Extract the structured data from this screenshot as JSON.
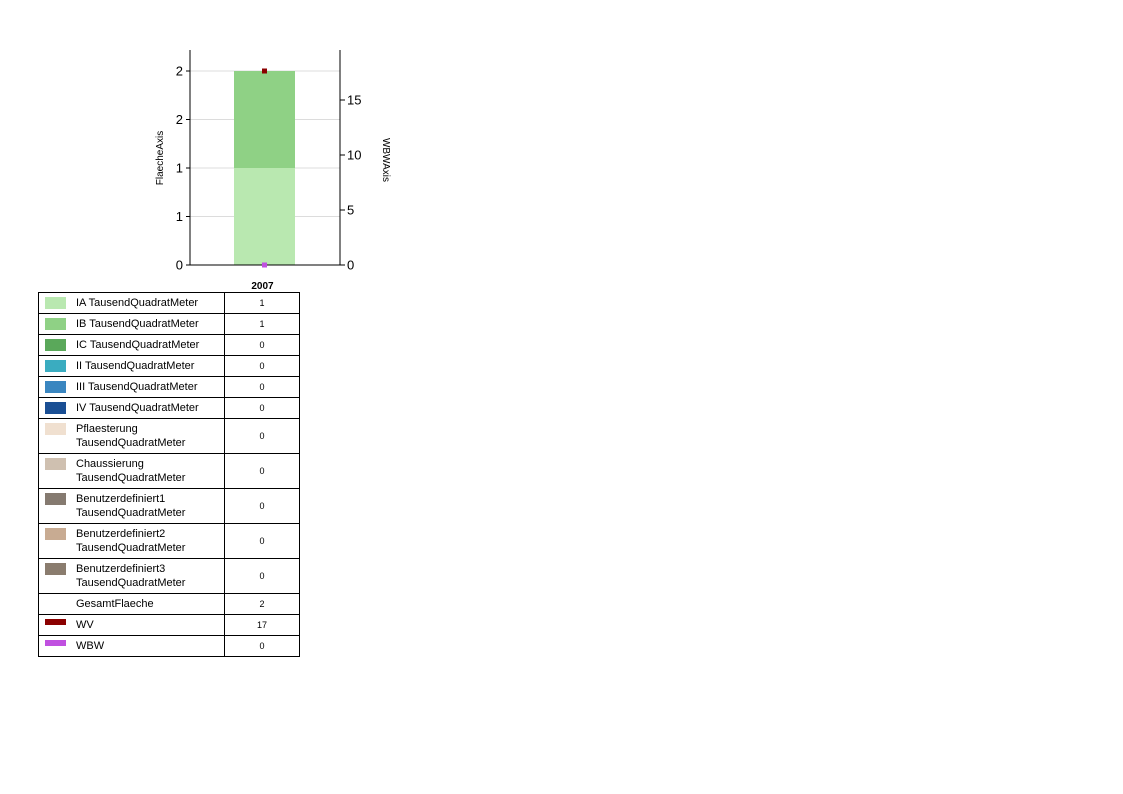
{
  "chart_data": {
    "type": "bar",
    "categories": [
      "2007"
    ],
    "left_axis": {
      "label": "FlaecheAxis",
      "ticks": [
        "0",
        "1",
        "1",
        "2",
        "2"
      ]
    },
    "right_axis": {
      "label": "WBWAxis",
      "ticks": [
        "0",
        "5",
        "10",
        "15"
      ],
      "ylim": [
        0,
        19
      ]
    },
    "series": [
      {
        "name": "IA TausendQuadratMeter",
        "color": "#b9e8b0",
        "kind": "bar",
        "values": [
          1
        ]
      },
      {
        "name": "IB TausendQuadratMeter",
        "color": "#8fd185",
        "kind": "bar",
        "values": [
          1
        ]
      },
      {
        "name": "IC TausendQuadratMeter",
        "color": "#5aa85a",
        "kind": "bar",
        "values": [
          0
        ]
      },
      {
        "name": "II TausendQuadratMeter",
        "color": "#3aacc0",
        "kind": "bar",
        "values": [
          0
        ]
      },
      {
        "name": "III TausendQuadratMeter",
        "color": "#3a86c0",
        "kind": "bar",
        "values": [
          0
        ]
      },
      {
        "name": "IV TausendQuadratMeter",
        "color": "#1a4f94",
        "kind": "bar",
        "values": [
          0
        ]
      },
      {
        "name": "Pflaesterung TausendQuadratMeter",
        "color": "#f0e0d0",
        "kind": "bar",
        "values": [
          0
        ]
      },
      {
        "name": "Chaussierung TausendQuadratMeter",
        "color": "#cfc0b0",
        "kind": "bar",
        "values": [
          0
        ]
      },
      {
        "name": "Benutzerdefiniert1 TausendQuadratMeter",
        "color": "#857a70",
        "kind": "bar",
        "values": [
          0
        ]
      },
      {
        "name": "Benutzerdefiniert2 TausendQuadratMeter",
        "color": "#c8ab92",
        "kind": "bar",
        "values": [
          0
        ]
      },
      {
        "name": "Benutzerdefiniert3 TausendQuadratMeter",
        "color": "#8a7c6e",
        "kind": "bar",
        "values": [
          0
        ]
      },
      {
        "name": "GesamtFlaeche",
        "color": "",
        "kind": "none",
        "values": [
          2
        ]
      },
      {
        "name": "WV",
        "color": "#8b0000",
        "kind": "point",
        "values": [
          17
        ]
      },
      {
        "name": "WBW",
        "color": "#c050e0",
        "kind": "point",
        "values": [
          0
        ]
      }
    ],
    "legend": [
      {
        "label": "IA TausendQuadratMeter",
        "value": "1",
        "color": "#b9e8b0",
        "swatch": "box"
      },
      {
        "label": "IB TausendQuadratMeter",
        "value": "1",
        "color": "#8fd185",
        "swatch": "box"
      },
      {
        "label": "IC TausendQuadratMeter",
        "value": "0",
        "color": "#5aa85a",
        "swatch": "box"
      },
      {
        "label": "II TausendQuadratMeter",
        "value": "0",
        "color": "#3aacc0",
        "swatch": "box"
      },
      {
        "label": "III TausendQuadratMeter",
        "value": "0",
        "color": "#3a86c0",
        "swatch": "box"
      },
      {
        "label": "IV TausendQuadratMeter",
        "value": "0",
        "color": "#1a4f94",
        "swatch": "box"
      },
      {
        "label": "Pflaesterung TausendQuadratMeter",
        "value": "0",
        "color": "#f0e0d0",
        "swatch": "box"
      },
      {
        "label": "Chaussierung TausendQuadratMeter",
        "value": "0",
        "color": "#cfc0b0",
        "swatch": "box"
      },
      {
        "label": "Benutzerdefiniert1 TausendQuadratMeter",
        "value": "0",
        "color": "#857a70",
        "swatch": "box"
      },
      {
        "label": "Benutzerdefiniert2 TausendQuadratMeter",
        "value": "0",
        "color": "#c8ab92",
        "swatch": "box"
      },
      {
        "label": "Benutzerdefiniert3 TausendQuadratMeter",
        "value": "0",
        "color": "#8a7c6e",
        "swatch": "box"
      },
      {
        "label": "GesamtFlaeche",
        "value": "2",
        "color": "",
        "swatch": "none"
      },
      {
        "label": "WV",
        "value": "17",
        "color": "#8b0000",
        "swatch": "line"
      },
      {
        "label": "WBW",
        "value": "0",
        "color": "#c050e0",
        "swatch": "line"
      }
    ],
    "grid": true
  }
}
